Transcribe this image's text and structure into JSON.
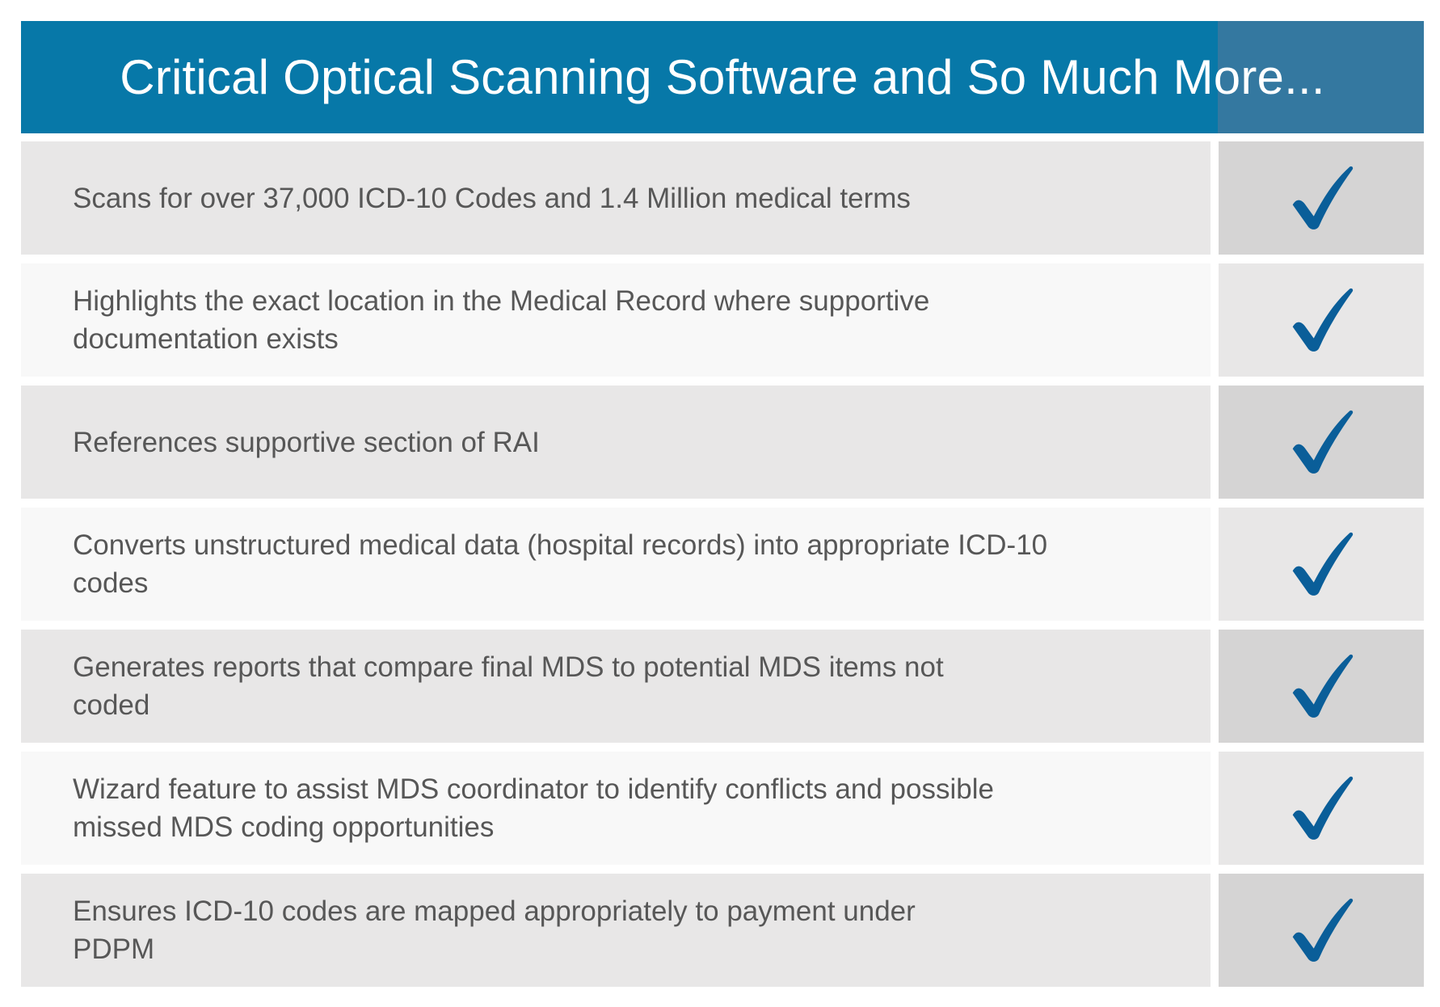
{
  "header": {
    "title": "Critical Optical Scanning Software and So Much More..."
  },
  "colors": {
    "header_bg": "#0778a8",
    "header_accent": "#3478a0",
    "checkmark": "#0a5e99",
    "text": "#575757"
  },
  "features": [
    {
      "text": "Scans for over 37,000 ICD-10 Codes and 1.4 Million medical terms",
      "icon": "checkmark-icon"
    },
    {
      "text": "Highlights the exact location in the Medical Record where supportive documentation exists",
      "icon": "checkmark-icon"
    },
    {
      "text": "References supportive section of RAI",
      "icon": "checkmark-icon"
    },
    {
      "text": "Converts unstructured medical data  (hospital records) into appropriate ICD-10 codes",
      "icon": "checkmark-icon"
    },
    {
      "text": "Generates reports that compare final MDS to potential MDS items not coded",
      "icon": "checkmark-icon"
    },
    {
      "text": "Wizard feature to assist MDS coordinator to identify conflicts and possible missed MDS coding opportunities",
      "icon": "checkmark-icon"
    },
    {
      "text": "Ensures ICD-10 codes are mapped appropriately to payment under PDPM",
      "icon": "checkmark-icon"
    }
  ]
}
